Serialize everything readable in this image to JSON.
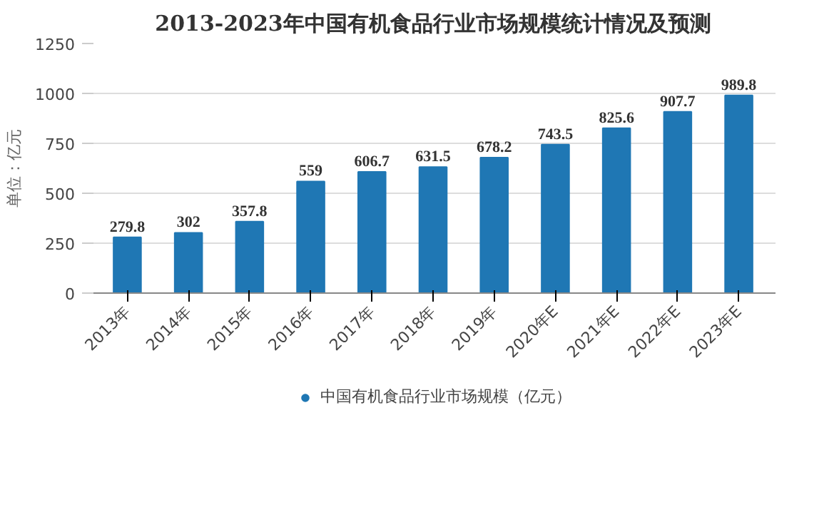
{
  "chart_data": {
    "type": "bar",
    "title": "2013-2023年中国有机食品行业市场规模统计情况及预测",
    "ylabel": "单位：亿元",
    "categories": [
      "2013年",
      "2014年",
      "2015年",
      "2016年",
      "2017年",
      "2018年",
      "2019年",
      "2020年E",
      "2021年E",
      "2022年E",
      "2023年E"
    ],
    "series": [
      {
        "name": "中国有机食品行业市场规模（亿元）",
        "color": "#1f77b4",
        "values": [
          279.8,
          302,
          357.8,
          559,
          606.7,
          631.5,
          678.2,
          743.5,
          825.6,
          907.7,
          989.8
        ]
      }
    ],
    "ylim": [
      0,
      1250
    ],
    "yticks": [
      0,
      250,
      500,
      750,
      1000,
      1250
    ],
    "grid": "y",
    "legend": "bottom",
    "data_labels": true
  }
}
